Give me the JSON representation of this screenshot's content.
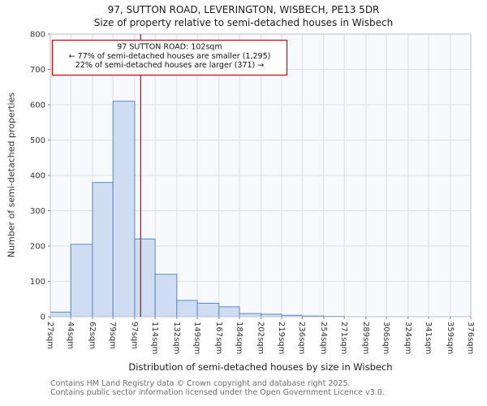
{
  "page": {
    "footer_line1": "Contains HM Land Registry data © Crown copyright and database right 2025.",
    "footer_line2": "Contains public sector information licensed under the Open Government Licence v3.0."
  },
  "chart_data": {
    "type": "bar",
    "title": "97, SUTTON ROAD, LEVERINGTON, WISBECH, PE13 5DR",
    "subtitle": "Size of property relative to semi-detached houses in Wisbech",
    "xlabel": "Distribution of semi-detached houses by size in Wisbech",
    "ylabel": "Number of semi-detached properties",
    "ylim": [
      0,
      800
    ],
    "ytick_step": 100,
    "ytick_labels": [
      "0",
      "100",
      "200",
      "300",
      "400",
      "500",
      "600",
      "700",
      "800"
    ],
    "bin_edges_sqm": [
      27,
      44,
      62,
      79,
      97,
      114,
      132,
      149,
      167,
      184,
      202,
      219,
      236,
      254,
      271,
      289,
      306,
      324,
      341,
      359,
      376
    ],
    "tick_labels": [
      "27sqm",
      "44sqm",
      "62sqm",
      "79sqm",
      "97sqm",
      "114sqm",
      "132sqm",
      "149sqm",
      "167sqm",
      "184sqm",
      "202sqm",
      "219sqm",
      "236sqm",
      "254sqm",
      "271sqm",
      "289sqm",
      "306sqm",
      "324sqm",
      "341sqm",
      "359sqm",
      "376sqm"
    ],
    "values": [
      13,
      205,
      380,
      610,
      220,
      120,
      46,
      38,
      28,
      9,
      7,
      4,
      2,
      1,
      0,
      0,
      0,
      0,
      0,
      0
    ],
    "marker": {
      "value_sqm": 102,
      "line_color": "#cc0000"
    },
    "annotation": {
      "line1": "97 SUTTON ROAD: 102sqm",
      "line2": "← 77% of semi-detached houses are smaller (1,295)",
      "line3": "22% of semi-detached houses are larger (371) →"
    },
    "grid": true,
    "legend": false,
    "colors": {
      "bar_fill": "#cfddf2",
      "bar_stroke": "#5b87c7",
      "grid": "#d9e0ea",
      "plot_bg": "#f8f9fc",
      "plot_border": "#b9c2ce",
      "annotation_border": "#cc0000",
      "axis_text": "#333333",
      "annotation_text": "#111111"
    }
  }
}
